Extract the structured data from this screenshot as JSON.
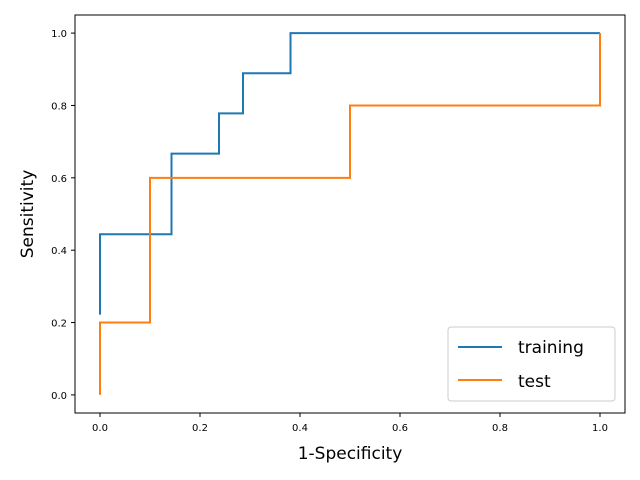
{
  "chart_data": {
    "type": "line",
    "xlabel": "1-Specificity",
    "ylabel": "Sensitivity",
    "xlim": [
      -0.05,
      1.05
    ],
    "ylim": [
      -0.05,
      1.05
    ],
    "xticks": [
      0.0,
      0.2,
      0.4,
      0.6,
      0.8,
      1.0
    ],
    "xtick_labels": [
      "0.0",
      "0.2",
      "0.4",
      "0.6",
      "0.8",
      "1.0"
    ],
    "yticks": [
      0.0,
      0.2,
      0.4,
      0.6,
      0.8,
      1.0
    ],
    "ytick_labels": [
      "0.0",
      "0.2",
      "0.4",
      "0.6",
      "0.8",
      "1.0"
    ],
    "grid": false,
    "legend_position": "lower-right",
    "series": [
      {
        "name": "training",
        "color": "#1f77b4",
        "x": [
          0.0,
          0.0,
          0.0,
          0.143,
          0.143,
          0.238,
          0.238,
          0.286,
          0.286,
          0.381,
          0.381,
          1.0
        ],
        "y": [
          0.222,
          0.222,
          0.444,
          0.444,
          0.667,
          0.667,
          0.778,
          0.778,
          0.889,
          0.889,
          1.0,
          1.0
        ]
      },
      {
        "name": "test",
        "color": "#ff7f0e",
        "x": [
          0.0,
          0.0,
          0.1,
          0.1,
          0.5,
          0.5,
          1.0,
          1.0
        ],
        "y": [
          0.0,
          0.2,
          0.2,
          0.6,
          0.6,
          0.8,
          0.8,
          1.0
        ]
      }
    ]
  }
}
